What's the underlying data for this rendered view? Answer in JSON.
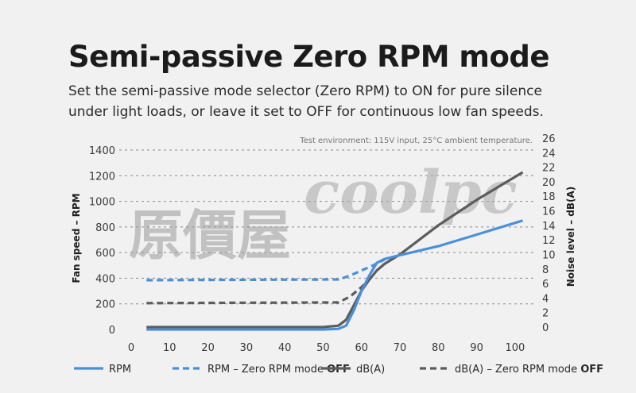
{
  "title": "Semi-passive Zero RPM mode",
  "subtitle": "Set the semi-passive mode selector (Zero RPM) to ON for pure silence under light loads, or leave it set to OFF for continuous low fan speeds.",
  "watermark": {
    "cjk": "原價屋",
    "latin": "coolpc"
  },
  "chart_data": {
    "type": "line",
    "note": "Test environment: 115V input, 25°C ambient temperature.",
    "x_ticks": [
      "0",
      "10",
      "20",
      "30",
      "40",
      "50",
      "60",
      "70",
      "80",
      "90",
      "100"
    ],
    "xlim": [
      0,
      105
    ],
    "y_left": {
      "label": "Fan speed – RPM",
      "ticks": [
        "0",
        "200",
        "400",
        "600",
        "800",
        "1000",
        "1200",
        "1400"
      ],
      "ylim": [
        0,
        1400
      ]
    },
    "y_right": {
      "label": "Noise level – dB(A)",
      "ticks": [
        "0",
        "2",
        "4",
        "6",
        "8",
        "10",
        "12",
        "14",
        "16",
        "18",
        "20",
        "22",
        "24",
        "26"
      ],
      "ylim": [
        0,
        26
      ]
    },
    "grid": "horizontal dashed",
    "series": [
      {
        "name": "RPM",
        "axis": "left",
        "style": "solid",
        "color": "#4a90d9",
        "x": [
          4,
          50,
          54,
          56,
          58,
          60,
          62,
          64,
          66,
          70,
          80,
          90,
          102
        ],
        "y": [
          0,
          0,
          5,
          30,
          150,
          300,
          420,
          520,
          550,
          580,
          650,
          740,
          850
        ]
      },
      {
        "name": "RPM – Zero RPM mode OFF",
        "axis": "left",
        "style": "dashed",
        "color": "#4a90d9",
        "x": [
          4,
          54,
          57,
          60,
          63,
          66
        ],
        "y": [
          385,
          390,
          420,
          460,
          500,
          545
        ]
      },
      {
        "name": "dB(A)",
        "axis": "right",
        "style": "solid",
        "color": "#5a5c5e",
        "x": [
          4,
          50,
          54,
          56,
          58,
          60,
          62,
          64,
          66,
          70,
          80,
          90,
          102
        ],
        "y": [
          0,
          0,
          0.2,
          1,
          3,
          5,
          6.5,
          7.8,
          8.7,
          10,
          14,
          17.5,
          21.3
        ]
      },
      {
        "name": "dB(A) – Zero RPM mode OFF",
        "axis": "right",
        "style": "dashed",
        "color": "#5a5c5e",
        "x": [
          4,
          54,
          57,
          60,
          62
        ],
        "y": [
          3.3,
          3.4,
          4.2,
          5.5,
          6.6
        ]
      }
    ],
    "legend": {
      "placement": "bottom",
      "items": [
        {
          "text": "RPM",
          "bold": "",
          "style": "solid",
          "color": "#4a90d9"
        },
        {
          "text": "RPM – Zero RPM mode ",
          "bold": "OFF",
          "style": "dashed",
          "color": "#4a90d9"
        },
        {
          "text": "dB(A)",
          "bold": "",
          "style": "solid",
          "color": "#5a5c5e"
        },
        {
          "text": "dB(A) – Zero RPM mode ",
          "bold": "OFF",
          "style": "dashed",
          "color": "#5a5c5e"
        }
      ]
    }
  }
}
